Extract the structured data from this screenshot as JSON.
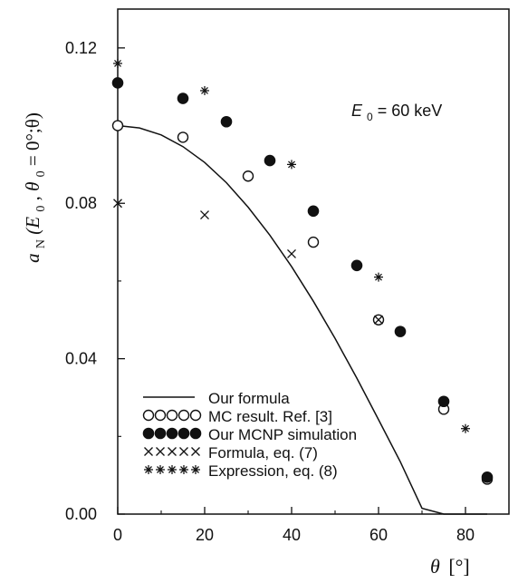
{
  "chart_data": {
    "type": "scatter",
    "title": "",
    "xlabel": {
      "symbol": "θ",
      "unit": "[°]"
    },
    "ylabel": {
      "a": "a",
      "sub": "N",
      "args_prefix": "(E",
      "args_sub0": "0",
      "args_middle": ", θ",
      "args_sub1": "0",
      "args_suffix": " = 0°;θ)"
    },
    "xlim": [
      0,
      90
    ],
    "ylim": [
      0.0,
      0.13
    ],
    "xticks": [
      0,
      20,
      40,
      60,
      80
    ],
    "xtick_labels": [
      "0",
      "20",
      "40",
      "60",
      "80"
    ],
    "yticks": [
      0.0,
      0.04,
      0.08,
      0.12
    ],
    "ytick_labels": [
      "0.00",
      "0.04",
      "0.08",
      "0.12"
    ],
    "grid": false,
    "legend_position": "bottom-left",
    "annotation": {
      "E": "E",
      "sub": "0",
      "rest": " = 60 keV"
    },
    "series": [
      {
        "name": "Our formula",
        "style": "line",
        "color": "#111111",
        "x": [
          0,
          5,
          10,
          15,
          20,
          25,
          30,
          35,
          40,
          45,
          50,
          55,
          60,
          65,
          70,
          75,
          80,
          85
        ],
        "y": [
          0.1,
          0.0994,
          0.0976,
          0.0946,
          0.0905,
          0.0853,
          0.079,
          0.0718,
          0.0637,
          0.0548,
          0.0452,
          0.035,
          0.0243,
          0.0135,
          0.0015,
          -0.0005,
          -0.0005,
          -0.0005
        ]
      },
      {
        "name": "MC result. Ref. [3]",
        "style": "open-circle",
        "color": "#111111",
        "x": [
          0,
          15,
          30,
          45,
          60,
          75,
          85
        ],
        "y": [
          0.1,
          0.097,
          0.087,
          0.07,
          0.05,
          0.027,
          0.009
        ]
      },
      {
        "name": "Our MCNP simulation",
        "style": "filled-circle",
        "color": "#111111",
        "x": [
          0,
          15,
          25,
          35,
          45,
          55,
          65,
          75,
          85
        ],
        "y": [
          0.111,
          0.107,
          0.101,
          0.091,
          0.078,
          0.064,
          0.047,
          0.029,
          0.0095
        ]
      },
      {
        "name": "Formula, eq. (7)",
        "style": "cross",
        "color": "#111111",
        "x": [
          0,
          20,
          40,
          60
        ],
        "y": [
          0.08,
          0.077,
          0.067,
          0.05
        ]
      },
      {
        "name": "Expression, eq. (8)",
        "style": "asterisk",
        "color": "#111111",
        "x": [
          0,
          20,
          40,
          60,
          80
        ],
        "y": [
          0.116,
          0.109,
          0.09,
          0.061,
          0.022
        ]
      }
    ]
  }
}
